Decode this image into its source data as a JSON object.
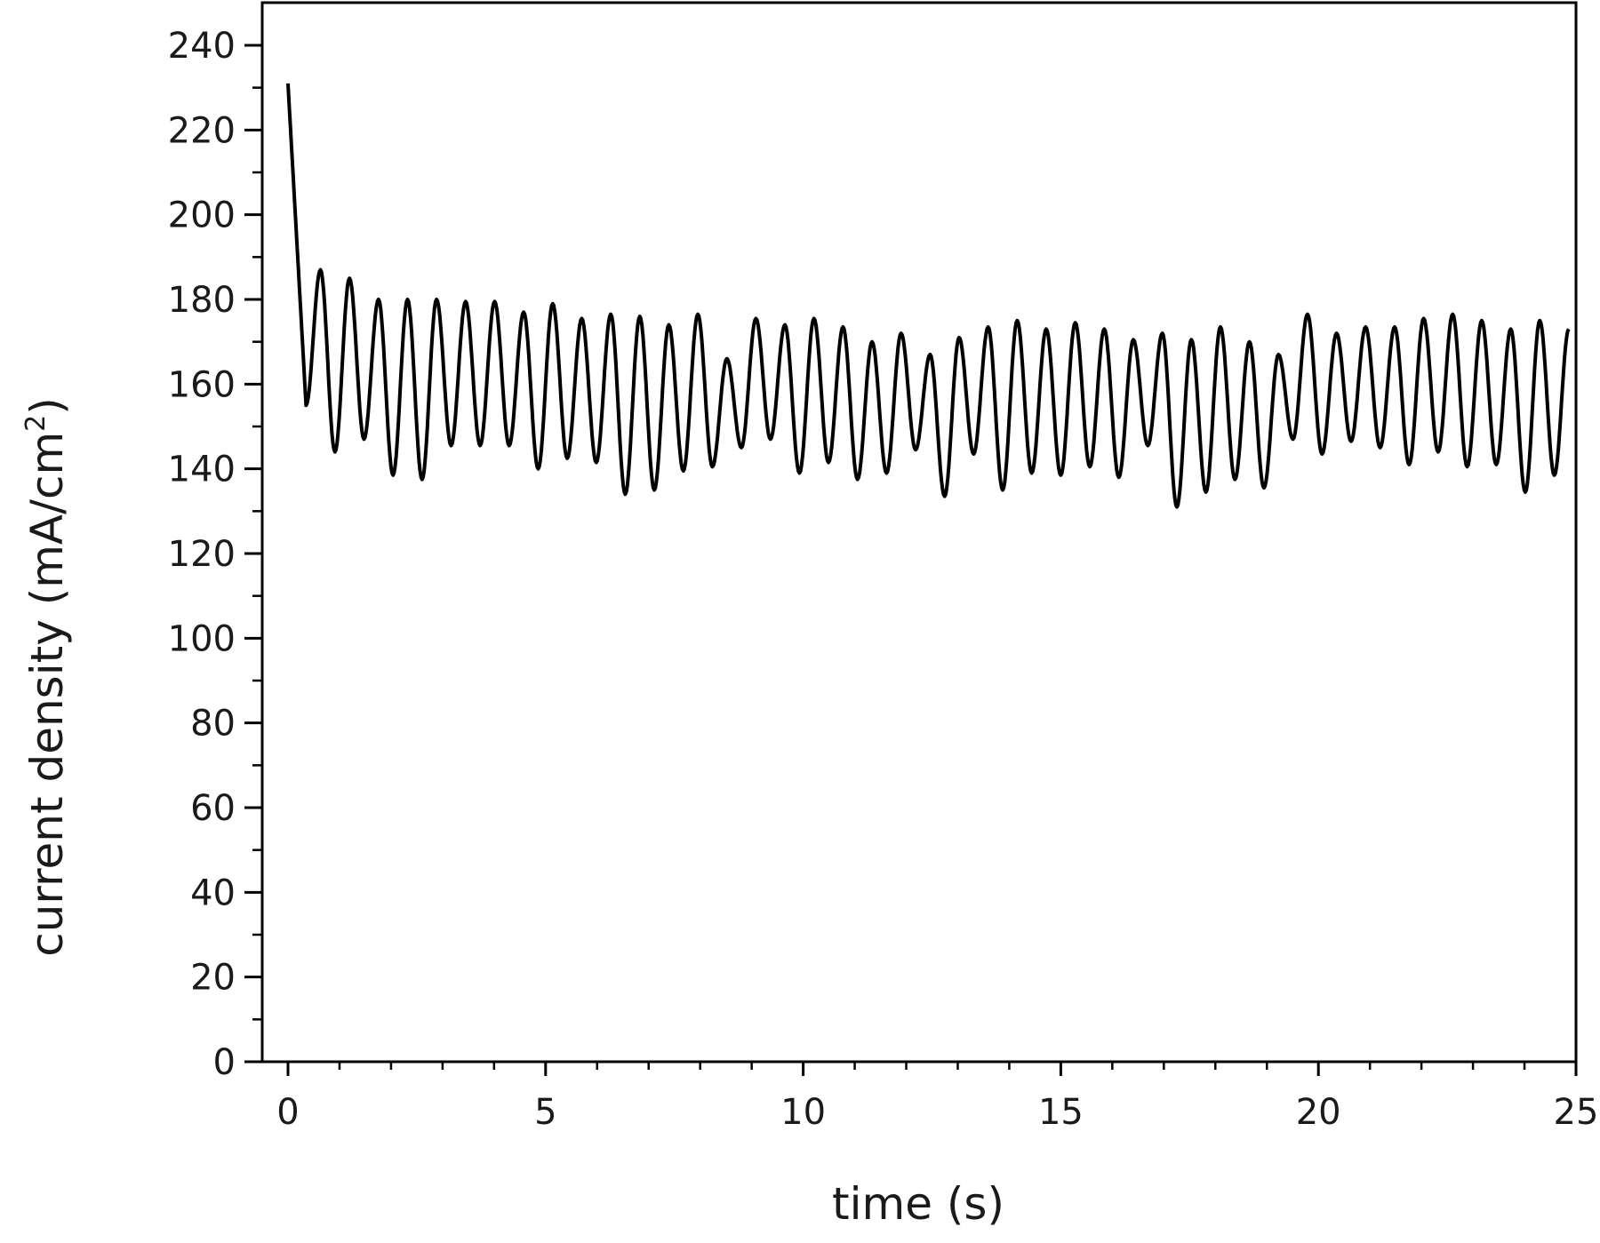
{
  "chart_data": {
    "type": "line",
    "title": "",
    "xlabel": "time (s)",
    "ylabel_main": "current density (mA/cm",
    "ylabel_sup": "2",
    "ylabel_close": ")",
    "xlim": [
      -0.5,
      25
    ],
    "ylim": [
      0,
      250
    ],
    "xticks": [
      0,
      5,
      10,
      15,
      20,
      25
    ],
    "xtick_labels": [
      "0",
      "5",
      "10",
      "15",
      "20",
      "25"
    ],
    "xminor_step": 1,
    "yticks": [
      0,
      20,
      40,
      60,
      80,
      100,
      120,
      140,
      160,
      180,
      200,
      220,
      240
    ],
    "ytick_labels": [
      "0",
      "20",
      "40",
      "60",
      "80",
      "100",
      "120",
      "140",
      "160",
      "180",
      "200",
      "220",
      "240"
    ],
    "yminor_step": 10,
    "grid": false,
    "line_color": "#000000",
    "series": [
      {
        "start": [
          0,
          231
        ],
        "cycle_period_s": 0.5635,
        "peaks": [
          187,
          185,
          180,
          180,
          180,
          179.5,
          179.5,
          177,
          179,
          175.5,
          176.5,
          176,
          174,
          176.5,
          166,
          175.5,
          174,
          175.5,
          173.5,
          170,
          172,
          167,
          171,
          173.5,
          175,
          173,
          174.5,
          173,
          170.5,
          172,
          170.5,
          173.5,
          170,
          167,
          176.5,
          172,
          173.5,
          173.5,
          175.5,
          176.5,
          175,
          173,
          175,
          173
        ],
        "troughs": [
          155,
          144,
          147,
          138.5,
          137.5,
          145.5,
          145.5,
          145.5,
          140,
          142.5,
          141.5,
          134,
          135,
          139.5,
          140.5,
          145,
          147,
          139,
          141.5,
          137.5,
          139,
          144.5,
          133.5,
          143.5,
          135,
          139,
          138.5,
          140.5,
          138,
          145.5,
          131,
          134.5,
          137.5,
          135.5,
          147,
          143.5,
          146.5,
          145,
          141,
          144,
          140.5,
          141,
          134.5,
          138.5
        ]
      }
    ]
  }
}
